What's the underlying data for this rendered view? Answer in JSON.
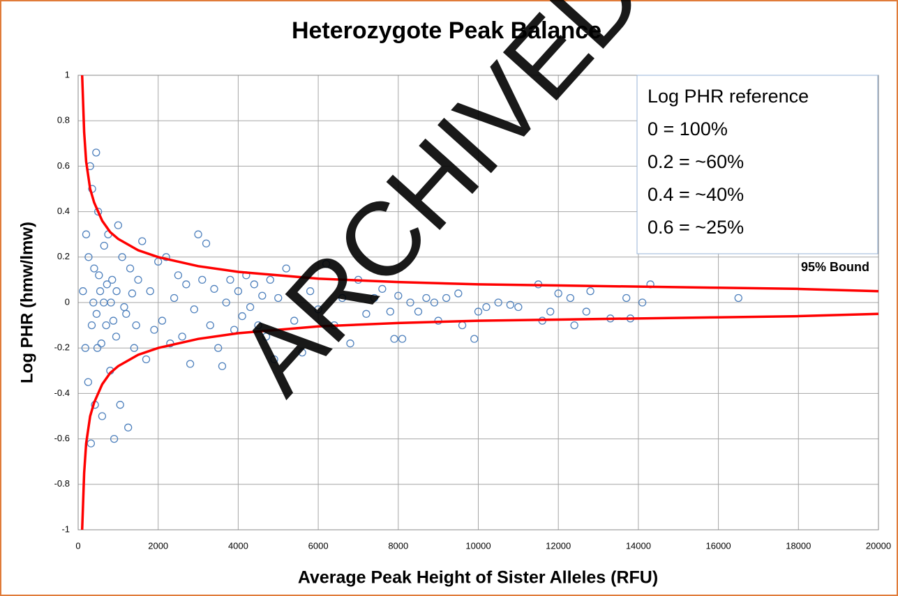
{
  "chart_data": {
    "type": "scatter",
    "title": "Heterozygote Peak Balance",
    "xlabel": "Average Peak Height of Sister Alleles (RFU)",
    "ylabel": "Log PHR (hmw/lmw)",
    "xlim": [
      0,
      20000
    ],
    "ylim": [
      -1,
      1
    ],
    "xticks": [
      0,
      2000,
      4000,
      6000,
      8000,
      10000,
      12000,
      14000,
      16000,
      18000,
      20000
    ],
    "yticks": [
      -1,
      -0.8,
      -0.6,
      -0.4,
      -0.2,
      0,
      0.2,
      0.4,
      0.6,
      0.8,
      1
    ],
    "grid": true,
    "points": {
      "color": "#4f81bd",
      "x": [
        200,
        250,
        300,
        320,
        350,
        400,
        420,
        450,
        480,
        500,
        550,
        600,
        650,
        700,
        750,
        800,
        850,
        900,
        950,
        1000,
        1050,
        1100,
        1200,
        1250,
        1300,
        1400,
        1500,
        1600,
        1700,
        1800,
        1900,
        2000,
        2100,
        2200,
        2300,
        2400,
        2500,
        2600,
        2700,
        2800,
        2900,
        3000,
        3100,
        3200,
        3300,
        3400,
        3500,
        3600,
        3700,
        3800,
        3900,
        4000,
        4100,
        4200,
        4300,
        4400,
        4500,
        4600,
        4700,
        4800,
        4900,
        5000,
        5200,
        5400,
        5600,
        5800,
        6000,
        6200,
        6400,
        6600,
        6800,
        7000,
        7200,
        7400,
        7600,
        7800,
        7900,
        8000,
        8100,
        8300,
        8500,
        8700,
        8900,
        9000,
        9200,
        9500,
        9600,
        9900,
        10000,
        10200,
        10500,
        10800,
        11000,
        11500,
        11600,
        11800,
        12000,
        12300,
        12400,
        12700,
        12800,
        13300,
        13700,
        13800,
        14100,
        14300,
        16500,
        120,
        180,
        260,
        340,
        380,
        460,
        520,
        580,
        640,
        720,
        820,
        880,
        960,
        1150,
        1350,
        1450
      ],
      "values": [
        0.3,
        -0.35,
        0.6,
        -0.62,
        0.5,
        0.15,
        -0.45,
        0.66,
        -0.2,
        0.4,
        0.05,
        -0.5,
        0.25,
        -0.1,
        0.3,
        -0.3,
        0.1,
        -0.6,
        -0.15,
        0.34,
        -0.45,
        0.2,
        -0.05,
        -0.55,
        0.15,
        -0.2,
        0.1,
        0.27,
        -0.25,
        0.05,
        -0.12,
        0.18,
        -0.08,
        0.2,
        -0.18,
        0.02,
        0.12,
        -0.15,
        0.08,
        -0.27,
        -0.03,
        0.3,
        0.1,
        0.26,
        -0.1,
        0.06,
        -0.2,
        -0.28,
        0,
        0.1,
        -0.12,
        0.05,
        -0.06,
        0.12,
        -0.02,
        0.08,
        -0.1,
        0.03,
        -0.15,
        0.1,
        -0.25,
        0.02,
        0.15,
        -0.08,
        -0.22,
        0.05,
        -0.03,
        0.17,
        -0.1,
        0.02,
        -0.18,
        0.1,
        -0.05,
        0.02,
        0.06,
        -0.04,
        -0.16,
        0.03,
        -0.16,
        0,
        -0.04,
        0.02,
        0,
        -0.08,
        0.02,
        0.04,
        -0.1,
        -0.16,
        -0.04,
        -0.02,
        0,
        -0.01,
        -0.02,
        0.08,
        -0.08,
        -0.04,
        0.04,
        0.02,
        -0.1,
        -0.04,
        0.05,
        -0.07,
        0.02,
        -0.07,
        0,
        0.08,
        0.02,
        0.05,
        -0.2,
        0.2,
        -0.1,
        0,
        -0.05,
        0.12,
        -0.18,
        0,
        0.08,
        0,
        -0.08,
        0.05,
        -0.02,
        0.04,
        -0.1
      ]
    },
    "bound_label": "95% Bound",
    "bound_color": "#ff0000",
    "bounds": [
      {
        "x": [
          100,
          150,
          200,
          300,
          400,
          600,
          800,
          1000,
          1500,
          2000,
          3000,
          4000,
          5000,
          6000,
          8000,
          10000,
          12000,
          14000,
          16000,
          18000,
          20000
        ],
        "values": [
          1,
          0.75,
          0.62,
          0.5,
          0.44,
          0.36,
          0.31,
          0.28,
          0.23,
          0.2,
          0.16,
          0.135,
          0.12,
          0.105,
          0.09,
          0.08,
          0.075,
          0.07,
          0.065,
          0.06,
          0.05
        ]
      },
      {
        "x": [
          100,
          150,
          200,
          300,
          400,
          600,
          800,
          1000,
          1500,
          2000,
          3000,
          4000,
          5000,
          6000,
          8000,
          10000,
          12000,
          14000,
          16000,
          18000,
          20000
        ],
        "values": [
          -1,
          -0.75,
          -0.62,
          -0.5,
          -0.44,
          -0.36,
          -0.31,
          -0.28,
          -0.23,
          -0.2,
          -0.16,
          -0.135,
          -0.12,
          -0.105,
          -0.09,
          -0.08,
          -0.075,
          -0.07,
          -0.065,
          -0.06,
          -0.05
        ]
      }
    ],
    "reference_box": [
      "Log PHR reference",
      "0 = 100%",
      "0.2 = ~60%",
      "0.4 = ~40%",
      "0.6 = ~25%"
    ],
    "watermark": "ARCHIVED"
  }
}
